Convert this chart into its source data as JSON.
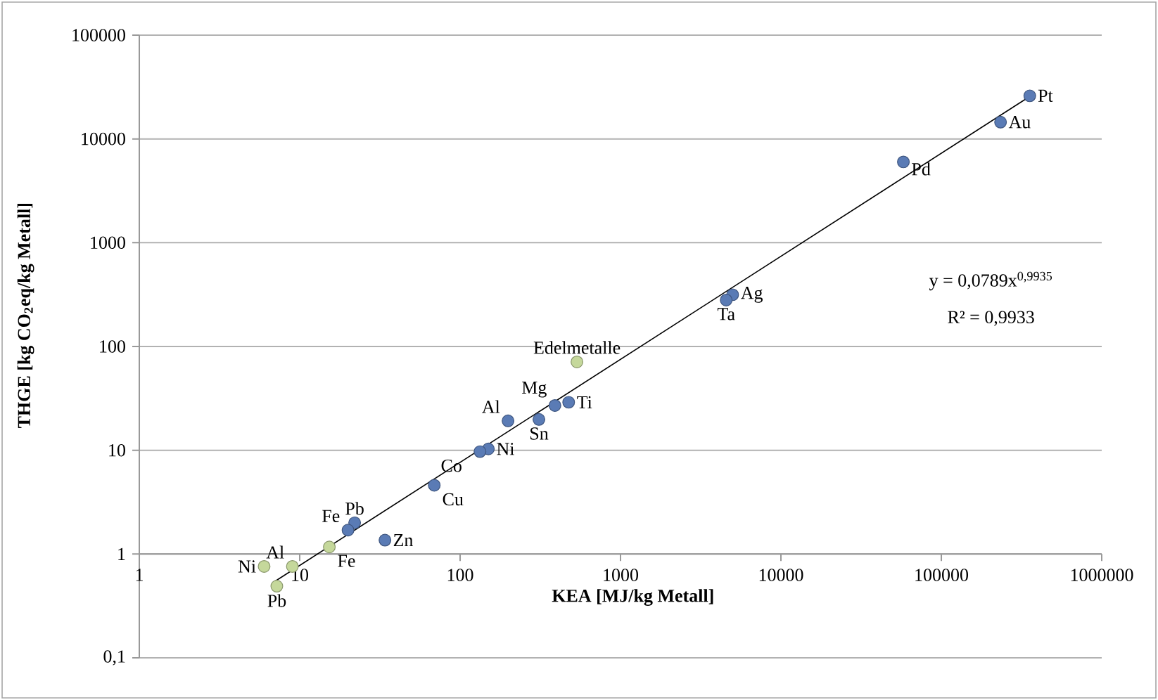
{
  "chart_data": {
    "type": "scatter",
    "xlabel": "KEA [MJ/kg Metall]",
    "ylabel": "THGE [kg CO$_{2}$eq/kg Metall]",
    "log": "xy",
    "grid": "y",
    "marker": "circle",
    "xlim": [
      1,
      1000000
    ],
    "ylim": [
      0.1,
      100000
    ],
    "xticks": [
      1,
      10,
      100,
      1000,
      10000,
      100000,
      1000000
    ],
    "yticks": [
      {
        "value": 0.1,
        "label": "0,1"
      },
      1,
      10,
      100,
      1000,
      10000,
      100000
    ],
    "series": [
      {
        "color": "#5a7bb5",
        "x": [
          356000,
          234000,
          58000,
          5000,
          4560,
          475,
          390,
          310,
          199,
          150,
          133,
          69,
          34,
          22,
          20
        ],
        "values": [
          26000,
          14500,
          6000,
          315,
          280,
          29,
          27,
          19.8,
          19.2,
          10.3,
          9.7,
          4.6,
          1.36,
          2.0,
          1.7
        ]
      },
      {
        "color": "#c5d89b",
        "x": [
          535,
          15.3,
          9.0,
          7.2,
          6.0
        ],
        "values": [
          71,
          1.17,
          0.76,
          0.49,
          0.76
        ]
      },
      {
        "type": "line",
        "color": "#000000",
        "marker": "none",
        "x": [
          7,
          360000
        ],
        "values": [
          0.545,
          25950
        ]
      }
    ],
    "annotations": [
      {
        "text": "Pt",
        "x": 356000,
        "y": 26000
      },
      {
        "text": "Au",
        "x": 234000,
        "y": 14500
      },
      {
        "text": "Pd",
        "x": 58000,
        "y": 6000
      },
      {
        "text": "Ag",
        "x": 5000,
        "y": 315
      },
      {
        "text": "Ta",
        "x": 4560,
        "y": 280
      },
      {
        "text": "Ti",
        "x": 475,
        "y": 29
      },
      {
        "text": "Mg",
        "x": 390,
        "y": 27
      },
      {
        "text": "Sn",
        "x": 310,
        "y": 19.8
      },
      {
        "text": "Al",
        "x": 199,
        "y": 19.2
      },
      {
        "text": "Ni",
        "x": 150,
        "y": 10.3
      },
      {
        "text": "Co",
        "x": 133,
        "y": 9.7
      },
      {
        "text": "Cu",
        "x": 69,
        "y": 4.6
      },
      {
        "text": "Zn",
        "x": 34,
        "y": 1.36
      },
      {
        "text": "Pb",
        "x": 22,
        "y": 2.0
      },
      {
        "text": "Fe",
        "x": 20,
        "y": 1.7
      },
      {
        "text": "Edelmetalle",
        "x": 535,
        "y": 71
      },
      {
        "text": "Fe",
        "x": 15.3,
        "y": 1.17
      },
      {
        "text": "Al",
        "x": 9.0,
        "y": 0.76
      },
      {
        "text": "Pb",
        "x": 7.2,
        "y": 0.49
      },
      {
        "text": "Ni",
        "x": 6.0,
        "y": 0.76
      },
      "y = 0,0789x$^{0,9935}$",
      "R² = 0,9933"
    ]
  }
}
